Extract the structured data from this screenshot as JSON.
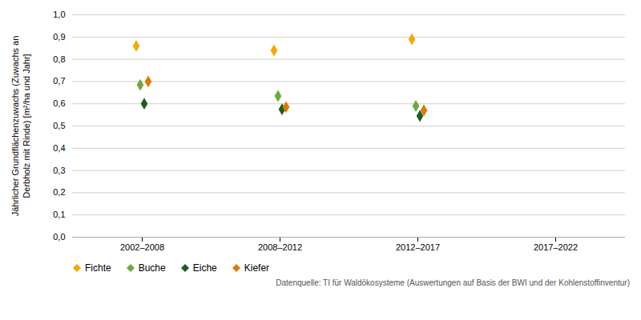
{
  "chart_data": {
    "type": "scatter",
    "categories": [
      "2002–2008",
      "2008–2012",
      "2012–2017",
      "2017–2022"
    ],
    "series": [
      {
        "name": "Fichte",
        "color": "#F5A800",
        "marker": "diamond",
        "values": [
          0.86,
          0.84,
          0.89,
          null
        ]
      },
      {
        "name": "Buche",
        "color": "#6AAB3A",
        "marker": "diamond",
        "values": [
          0.685,
          0.635,
          0.59,
          null
        ]
      },
      {
        "name": "Eiche",
        "color": "#1A5E20",
        "marker": "diamond",
        "values": [
          0.6,
          0.575,
          0.545,
          null
        ]
      },
      {
        "name": "Kiefer",
        "color": "#E07800",
        "marker": "diamond",
        "values": [
          0.7,
          0.585,
          0.57,
          null
        ]
      }
    ],
    "ylabel": "Jährlicher Grundflächenzuwachs (Zuwachs an\nDerbholz mit Rinde) [m²/ha und Jahr]",
    "ylim": [
      0.0,
      1.0
    ],
    "yticks": [
      {
        "value": 0.0,
        "label": "0,0"
      },
      {
        "value": 0.1,
        "label": "0,1"
      },
      {
        "value": 0.2,
        "label": "0,2"
      },
      {
        "value": 0.3,
        "label": "0,3"
      },
      {
        "value": 0.4,
        "label": "0,4"
      },
      {
        "value": 0.5,
        "label": "0,5"
      },
      {
        "value": 0.6,
        "label": "0,6"
      },
      {
        "value": 0.7,
        "label": "0,7"
      },
      {
        "value": 0.8,
        "label": "0,8"
      },
      {
        "value": 0.9,
        "label": "0,9"
      },
      {
        "value": 1.0,
        "label": "1,0"
      }
    ],
    "grid": true,
    "legend": "bottom",
    "annotations": [
      "Datenquelle: TI für Waldökosysteme (Auswertungen auf Basis der BWI und der Kohlenstoffinventur)"
    ]
  }
}
